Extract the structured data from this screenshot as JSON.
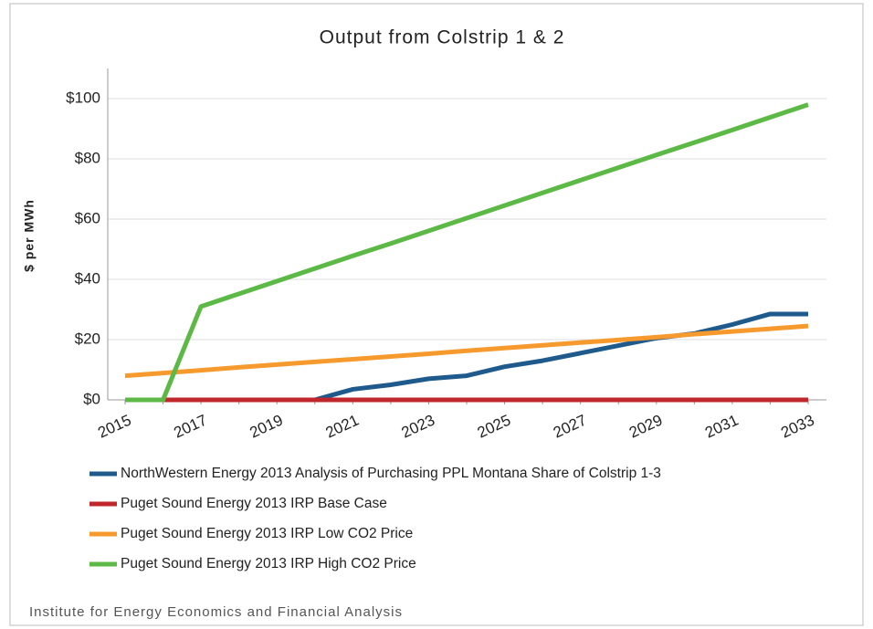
{
  "chart_data": {
    "type": "line",
    "title": "Output from Colstrip 1 & 2",
    "ylabel": "$ per MWh",
    "footer": "Institute for Energy Economics and Financial Analysis",
    "categories": [
      "2015",
      null,
      "2017",
      null,
      "2019",
      null,
      "2021",
      null,
      "2023",
      null,
      "2025",
      null,
      "2027",
      null,
      "2029",
      null,
      "2031",
      null,
      "2033"
    ],
    "ylim": [
      0,
      110
    ],
    "yticks": [
      {
        "value": 0,
        "label": "$0"
      },
      {
        "value": 20,
        "label": "$20"
      },
      {
        "value": 40,
        "label": "$40"
      },
      {
        "value": 60,
        "label": "$60"
      },
      {
        "value": 80,
        "label": "$80"
      },
      {
        "value": 100,
        "label": "$100"
      }
    ],
    "grid": true,
    "legend": "bottom",
    "series": [
      {
        "name": "NorthWestern Energy 2013 Analysis of Purchasing PPL Montana Share of Colstrip 1-3",
        "color": "#1f5a8c",
        "values": [
          0,
          0,
          0,
          0,
          0,
          0,
          3.5,
          5,
          7,
          8,
          11,
          13,
          15.5,
          18,
          20.5,
          22,
          25,
          28.5,
          28.5
        ]
      },
      {
        "name": "Puget Sound Energy 2013 IRP Base Case",
        "color": "#c0272d",
        "values": [
          0,
          0,
          0,
          0,
          0,
          0,
          0,
          0,
          0,
          0,
          0,
          0,
          0,
          0,
          0,
          0,
          0,
          0,
          0
        ]
      },
      {
        "name": "Puget Sound Energy 2013 IRP Low CO2 Price",
        "color": "#f79a2e",
        "values": [
          8,
          8.9,
          9.8,
          10.8,
          11.7,
          12.6,
          13.5,
          14.4,
          15.3,
          16.3,
          17.2,
          18.1,
          19,
          19.9,
          20.8,
          21.8,
          22.7,
          23.6,
          24.5
        ]
      },
      {
        "name": "Puget Sound Energy 2013 IRP High CO2 Price",
        "color": "#5cb946",
        "values": [
          0,
          0,
          31,
          35.2,
          39.4,
          43.6,
          47.8,
          51.9,
          56.1,
          60.3,
          64.5,
          68.7,
          72.9,
          77.1,
          81.3,
          85.4,
          89.6,
          93.8,
          98
        ]
      }
    ]
  }
}
